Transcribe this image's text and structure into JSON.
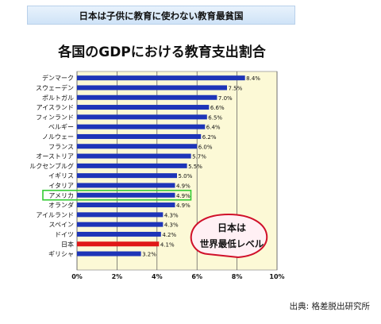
{
  "header": {
    "banner_text": "日本は子供に教育に使わない教育最貧国"
  },
  "source_text": "出典: 格差脱出研究所",
  "callout": {
    "line1": "日本は",
    "line2": "世界最低レベル"
  },
  "colors": {
    "bar": "#1e35b8",
    "japan_bar": "#e01818",
    "plot_background": "#fcf9d6",
    "highlight_box": "#33cc33",
    "callout_fill": "#fff0f4",
    "callout_stroke": "#d0102a"
  },
  "chart_data": {
    "type": "bar",
    "orientation": "horizontal",
    "title": "各国のGDPにおける教育支出割合",
    "categories": [
      "デンマーク",
      "スウェーデン",
      "ポルトガル",
      "アイスランド",
      "フィンランド",
      "ベルギー",
      "ノルウェー",
      "フランス",
      "オーストリア",
      "ルクセンブルグ",
      "イギリス",
      "イタリア",
      "アメリカ",
      "オランダ",
      "アイルランド",
      "スペイン",
      "ドイツ",
      "日本",
      "ギリシャ"
    ],
    "values": [
      8.4,
      7.5,
      7.0,
      6.6,
      6.5,
      6.4,
      6.2,
      6.0,
      5.7,
      5.5,
      5.0,
      4.9,
      4.9,
      4.9,
      4.3,
      4.3,
      4.2,
      4.1,
      3.2
    ],
    "value_labels": [
      "8.4%",
      "7.5%",
      "7.0%",
      "6.6%",
      "6.5%",
      "6.4%",
      "6.2%",
      "6.0%",
      "5.7%",
      "5.5%",
      "5.0%",
      "4.9%",
      "4.9%",
      "4.9%",
      "4.3%",
      "4.3%",
      "4.2%",
      "4.1%",
      "3.2%"
    ],
    "xticks": [
      "0%",
      "2%",
      "4%",
      "6%",
      "8%",
      "10%"
    ],
    "xlim": [
      0,
      10
    ],
    "highlighted_categories": [
      "日本"
    ],
    "boxed_categories": [
      "アメリカ"
    ],
    "grid": true
  }
}
